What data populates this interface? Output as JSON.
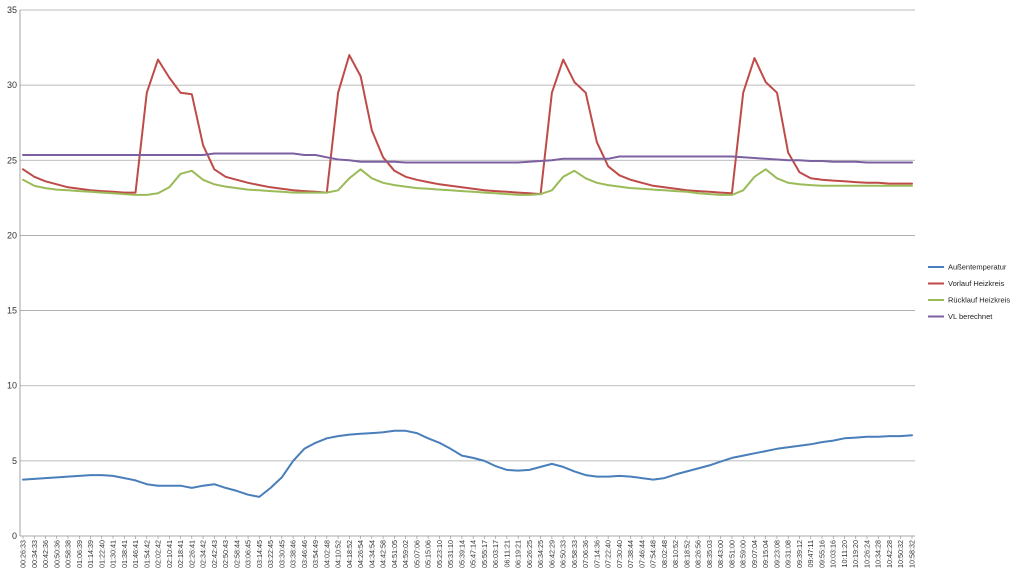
{
  "chart_data": {
    "type": "line",
    "title": "",
    "xlabel": "",
    "ylabel": "",
    "ylim": [
      0,
      35
    ],
    "yticks": [
      0,
      5,
      10,
      15,
      20,
      25,
      30,
      35
    ],
    "grid": "horizontal",
    "legend_position": "right",
    "x_tick_labels": [
      "00:26:33",
      "00:34:33",
      "00:42:36",
      "00:50:36",
      "00:58:38",
      "01:06:39",
      "01:14:39",
      "01:22:40",
      "01:30:41",
      "01:38:41",
      "01:46:41",
      "01:54:42",
      "02:02:42",
      "02:10:41",
      "02:18:41",
      "02:26:41",
      "02:34:42",
      "02:42:43",
      "02:50:43",
      "02:58:44",
      "03:06:45",
      "03:14:45",
      "03:22:45",
      "03:30:45",
      "03:38:46",
      "03:46:46",
      "03:54:49",
      "04:02:48",
      "04:10:52",
      "04:18:52",
      "04:26:54",
      "04:34:54",
      "04:42:58",
      "04:51:05",
      "04:59:02",
      "05:07:06",
      "05:15:06",
      "05:23:10",
      "05:31:10",
      "05:39:14",
      "05:47:14",
      "05:55:17",
      "06:03:17",
      "06:11:21",
      "06:19:21",
      "06:26:25",
      "06:34:25",
      "06:42:29",
      "06:50:33",
      "06:58:33",
      "07:06:36",
      "07:14:36",
      "07:22:40",
      "07:30:40",
      "07:38:44",
      "07:46:44",
      "07:54:48",
      "08:02:48",
      "08:10:52",
      "08:18:52",
      "08:26:56",
      "08:35:03",
      "08:43:00",
      "08:51:00",
      "08:59:00",
      "09:07:04",
      "09:15:04",
      "09:23:08",
      "09:31:08",
      "09:39:12",
      "09:47:11",
      "09:55:16",
      "10:03:16",
      "10:11:20",
      "10:19:20",
      "10:26:24",
      "10:34:28",
      "10:42:28",
      "10:50:32",
      "10:58:32"
    ],
    "series": [
      {
        "name": "Außentemperatur",
        "color": "#4a7ebb",
        "values": [
          3.75,
          3.8,
          3.85,
          3.9,
          3.95,
          4.0,
          4.05,
          4.05,
          4.0,
          3.85,
          3.7,
          3.45,
          3.35,
          3.35,
          3.35,
          3.2,
          3.35,
          3.45,
          3.2,
          3.0,
          2.75,
          2.6,
          3.2,
          3.9,
          5.0,
          5.8,
          6.2,
          6.5,
          6.65,
          6.75,
          6.8,
          6.85,
          6.9,
          7.0,
          7.0,
          6.85,
          6.5,
          6.2,
          5.8,
          5.35,
          5.2,
          5.0,
          4.65,
          4.4,
          4.35,
          4.4,
          4.6,
          4.8,
          4.6,
          4.3,
          4.05,
          3.95,
          3.95,
          4.0,
          3.95,
          3.85,
          3.75,
          3.85,
          4.1,
          4.3,
          4.5,
          4.7,
          4.95,
          5.2,
          5.35,
          5.5,
          5.65,
          5.8,
          5.9,
          6.0,
          6.1,
          6.25,
          6.35,
          6.5,
          6.55,
          6.6,
          6.6,
          6.65,
          6.65,
          6.7
        ]
      },
      {
        "name": "Vorlauf Heizkreis",
        "color": "#be4b48",
        "values": [
          24.4,
          23.9,
          23.6,
          23.4,
          23.2,
          23.1,
          23.0,
          22.95,
          22.9,
          22.85,
          22.85,
          29.5,
          31.7,
          30.5,
          29.5,
          29.4,
          26.0,
          24.4,
          23.9,
          23.7,
          23.5,
          23.35,
          23.2,
          23.1,
          23.0,
          22.95,
          22.9,
          22.85,
          29.5,
          32.0,
          30.6,
          27.0,
          25.2,
          24.3,
          23.9,
          23.7,
          23.55,
          23.4,
          23.3,
          23.2,
          23.1,
          23.0,
          22.95,
          22.9,
          22.85,
          22.8,
          22.75,
          29.5,
          31.7,
          30.2,
          29.5,
          26.2,
          24.6,
          24.0,
          23.7,
          23.5,
          23.3,
          23.2,
          23.1,
          23.0,
          22.95,
          22.9,
          22.85,
          22.8,
          29.5,
          31.8,
          30.2,
          29.5,
          25.5,
          24.2,
          23.8,
          23.7,
          23.65,
          23.6,
          23.55,
          23.5,
          23.5,
          23.45,
          23.45,
          23.45
        ]
      },
      {
        "name": "Rücklauf Heizkreis",
        "color": "#9bbb59",
        "values": [
          23.7,
          23.3,
          23.15,
          23.05,
          23.0,
          22.95,
          22.9,
          22.85,
          22.8,
          22.75,
          22.7,
          22.7,
          22.8,
          23.2,
          24.1,
          24.3,
          23.7,
          23.4,
          23.25,
          23.15,
          23.05,
          23.0,
          22.95,
          22.9,
          22.85,
          22.85,
          22.85,
          22.85,
          23.0,
          23.8,
          24.4,
          23.8,
          23.5,
          23.35,
          23.25,
          23.15,
          23.1,
          23.05,
          23.0,
          22.95,
          22.9,
          22.85,
          22.8,
          22.75,
          22.7,
          22.7,
          22.75,
          23.0,
          23.9,
          24.3,
          23.8,
          23.5,
          23.35,
          23.25,
          23.15,
          23.1,
          23.05,
          23.0,
          22.95,
          22.9,
          22.8,
          22.75,
          22.7,
          22.7,
          23.0,
          23.9,
          24.4,
          23.8,
          23.5,
          23.4,
          23.35,
          23.3,
          23.3,
          23.3,
          23.3,
          23.3,
          23.3,
          23.3,
          23.3,
          23.3
        ]
      },
      {
        "name": "VL berechnet",
        "color": "#7d60a0",
        "values": [
          25.35,
          25.35,
          25.35,
          25.35,
          25.35,
          25.35,
          25.35,
          25.35,
          25.35,
          25.35,
          25.35,
          25.35,
          25.35,
          25.35,
          25.35,
          25.35,
          25.35,
          25.45,
          25.45,
          25.45,
          25.45,
          25.45,
          25.45,
          25.45,
          25.45,
          25.35,
          25.35,
          25.2,
          25.05,
          25.0,
          24.9,
          24.9,
          24.9,
          24.9,
          24.85,
          24.85,
          24.85,
          24.85,
          24.85,
          24.85,
          24.85,
          24.85,
          24.85,
          24.85,
          24.85,
          24.9,
          24.95,
          25.0,
          25.1,
          25.1,
          25.1,
          25.1,
          25.1,
          25.25,
          25.25,
          25.25,
          25.25,
          25.25,
          25.25,
          25.25,
          25.25,
          25.25,
          25.25,
          25.25,
          25.2,
          25.15,
          25.1,
          25.05,
          25.0,
          25.0,
          24.95,
          24.95,
          24.9,
          24.9,
          24.9,
          24.85,
          24.85,
          24.85,
          24.85,
          24.85
        ]
      }
    ]
  }
}
